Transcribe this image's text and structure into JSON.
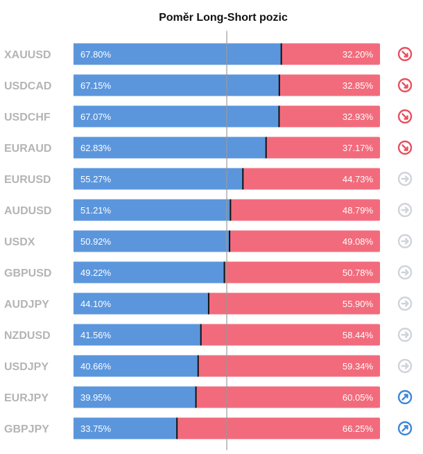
{
  "title": "Poměr Long-Short pozic",
  "colors": {
    "long": "#5b96dd",
    "short": "#f26b7c",
    "symbol": "#b4b4b4",
    "center_line": "#999999",
    "divider": "#111111",
    "icon_down": "#e8505f",
    "icon_neutral": "#cfd3da",
    "icon_up": "#3d86d6"
  },
  "chart_data": {
    "type": "bar",
    "stacked": true,
    "orientation": "horizontal",
    "xlim": [
      0,
      100
    ],
    "center_line": 50,
    "categories": [
      "XAUUSD",
      "USDCAD",
      "USDCHF",
      "EURAUD",
      "EURUSD",
      "AUDUSD",
      "USDX",
      "GBPUSD",
      "AUDJPY",
      "NZDUSD",
      "USDJPY",
      "EURJPY",
      "GBPJPY"
    ],
    "series": [
      {
        "values": [
          67.8,
          67.15,
          67.07,
          62.83,
          55.27,
          51.21,
          50.92,
          49.22,
          44.1,
          41.56,
          40.66,
          39.95,
          33.75
        ]
      },
      {
        "values": [
          32.2,
          32.85,
          32.93,
          37.17,
          44.73,
          48.79,
          49.08,
          50.78,
          55.9,
          58.44,
          59.34,
          60.05,
          66.25
        ]
      }
    ],
    "long_labels": [
      "67.80%",
      "67.15%",
      "67.07%",
      "62.83%",
      "55.27%",
      "51.21%",
      "50.92%",
      "49.22%",
      "44.10%",
      "41.56%",
      "40.66%",
      "39.95%",
      "33.75%"
    ],
    "short_labels": [
      "32.20%",
      "32.85%",
      "32.93%",
      "37.17%",
      "44.73%",
      "48.79%",
      "49.08%",
      "50.78%",
      "55.90%",
      "58.44%",
      "59.34%",
      "60.05%",
      "66.25%"
    ],
    "trend_icons": [
      "arrow-down-right-icon",
      "arrow-down-right-icon",
      "arrow-down-right-icon",
      "arrow-down-right-icon",
      "arrow-right-icon",
      "arrow-right-icon",
      "arrow-right-icon",
      "arrow-right-icon",
      "arrow-right-icon",
      "arrow-right-icon",
      "arrow-right-icon",
      "arrow-up-right-icon",
      "arrow-up-right-icon"
    ]
  }
}
